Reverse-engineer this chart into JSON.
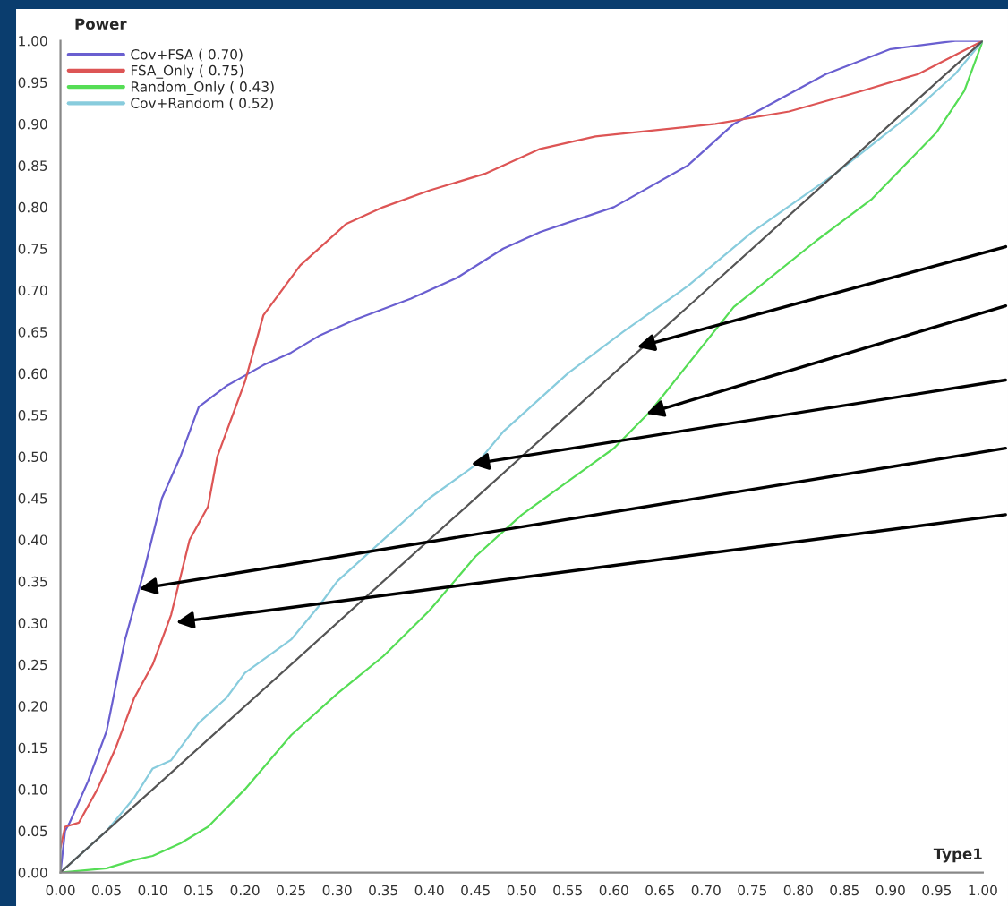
{
  "chart_data": {
    "type": "line",
    "xlabel": "Type1",
    "ylabel": "Power",
    "xlim": [
      0,
      1
    ],
    "ylim": [
      0,
      1
    ],
    "xticks": [
      {
        "value": 0,
        "label": "0.00"
      },
      {
        "value": 0.05,
        "label": "0.05"
      },
      {
        "value": 0.1,
        "label": "0.10"
      },
      {
        "value": 0.15,
        "label": "0.15"
      },
      {
        "value": 0.2,
        "label": "0.20"
      },
      {
        "value": 0.25,
        "label": "0.25"
      },
      {
        "value": 0.3,
        "label": "0.30"
      },
      {
        "value": 0.35,
        "label": "0.35"
      },
      {
        "value": 0.4,
        "label": "0.40"
      },
      {
        "value": 0.45,
        "label": "0.45"
      },
      {
        "value": 0.5,
        "label": "0.50"
      },
      {
        "value": 0.55,
        "label": "0.55"
      },
      {
        "value": 0.6,
        "label": "0.60"
      },
      {
        "value": 0.65,
        "label": "0.65"
      },
      {
        "value": 0.7,
        "label": "0.70"
      },
      {
        "value": 0.75,
        "label": "0.75"
      },
      {
        "value": 0.8,
        "label": "0.80"
      },
      {
        "value": 0.85,
        "label": "0.85"
      },
      {
        "value": 0.9,
        "label": "0.90"
      },
      {
        "value": 0.95,
        "label": "0.95"
      },
      {
        "value": 1,
        "label": "1.00"
      }
    ],
    "yticks": [
      {
        "value": 0,
        "label": "0.00"
      },
      {
        "value": 0.05,
        "label": "0.05"
      },
      {
        "value": 0.1,
        "label": "0.10"
      },
      {
        "value": 0.15,
        "label": "0.15"
      },
      {
        "value": 0.2,
        "label": "0.20"
      },
      {
        "value": 0.25,
        "label": "0.25"
      },
      {
        "value": 0.3,
        "label": "0.30"
      },
      {
        "value": 0.35,
        "label": "0.35"
      },
      {
        "value": 0.4,
        "label": "0.40"
      },
      {
        "value": 0.45,
        "label": "0.45"
      },
      {
        "value": 0.5,
        "label": "0.50"
      },
      {
        "value": 0.55,
        "label": "0.55"
      },
      {
        "value": 0.6,
        "label": "0.60"
      },
      {
        "value": 0.65,
        "label": "0.65"
      },
      {
        "value": 0.7,
        "label": "0.70"
      },
      {
        "value": 0.75,
        "label": "0.75"
      },
      {
        "value": 0.8,
        "label": "0.80"
      },
      {
        "value": 0.85,
        "label": "0.85"
      },
      {
        "value": 0.9,
        "label": "0.90"
      },
      {
        "value": 0.95,
        "label": "0.95"
      },
      {
        "value": 1,
        "label": "1.00"
      }
    ],
    "grid": false,
    "legend": "top left",
    "series": [
      {
        "name": "Cov+FSA ( 0.70)",
        "color": "#6a5fd0",
        "x": [
          0,
          0.005,
          0.01,
          0.03,
          0.05,
          0.07,
          0.09,
          0.11,
          0.13,
          0.15,
          0.18,
          0.22,
          0.25,
          0.28,
          0.32,
          0.38,
          0.43,
          0.48,
          0.52,
          0.6,
          0.68,
          0.73,
          0.83,
          0.9,
          0.97,
          1
        ],
        "values": [
          0,
          0.05,
          0.06,
          0.11,
          0.17,
          0.28,
          0.36,
          0.45,
          0.5,
          0.56,
          0.585,
          0.61,
          0.625,
          0.645,
          0.665,
          0.69,
          0.715,
          0.75,
          0.77,
          0.8,
          0.85,
          0.9,
          0.96,
          0.99,
          1,
          1
        ]
      },
      {
        "name": "FSA_Only ( 0.75)",
        "color": "#dd5555",
        "x": [
          0,
          0.005,
          0.02,
          0.04,
          0.06,
          0.08,
          0.1,
          0.12,
          0.14,
          0.16,
          0.17,
          0.2,
          0.22,
          0.26,
          0.31,
          0.35,
          0.4,
          0.46,
          0.52,
          0.58,
          0.71,
          0.79,
          0.87,
          0.93,
          1
        ],
        "values": [
          0.03,
          0.055,
          0.06,
          0.1,
          0.15,
          0.21,
          0.25,
          0.31,
          0.4,
          0.44,
          0.5,
          0.59,
          0.67,
          0.73,
          0.78,
          0.8,
          0.82,
          0.84,
          0.87,
          0.885,
          0.9,
          0.915,
          0.94,
          0.96,
          1
        ]
      },
      {
        "name": "Random_Only ( 0.43)",
        "color": "#55dd55",
        "x": [
          0,
          0.05,
          0.08,
          0.1,
          0.13,
          0.16,
          0.2,
          0.25,
          0.3,
          0.35,
          0.4,
          0.45,
          0.5,
          0.55,
          0.6,
          0.64,
          0.73,
          0.82,
          0.88,
          0.95,
          0.98,
          1
        ],
        "values": [
          0,
          0.005,
          0.015,
          0.02,
          0.035,
          0.055,
          0.1,
          0.165,
          0.215,
          0.26,
          0.315,
          0.38,
          0.43,
          0.47,
          0.51,
          0.555,
          0.68,
          0.76,
          0.81,
          0.89,
          0.94,
          1
        ]
      },
      {
        "name": "Cov+Random ( 0.52)",
        "color": "#88ccdd",
        "x": [
          0,
          0.05,
          0.08,
          0.1,
          0.12,
          0.15,
          0.18,
          0.2,
          0.25,
          0.28,
          0.3,
          0.35,
          0.4,
          0.45,
          0.48,
          0.55,
          0.61,
          0.68,
          0.75,
          0.84,
          0.92,
          0.97,
          1
        ],
        "values": [
          0,
          0.05,
          0.09,
          0.125,
          0.135,
          0.18,
          0.21,
          0.24,
          0.28,
          0.32,
          0.35,
          0.4,
          0.45,
          0.49,
          0.53,
          0.6,
          0.65,
          0.705,
          0.77,
          0.84,
          0.91,
          0.96,
          1
        ]
      },
      {
        "color": "#555555",
        "x": [
          0,
          1
        ],
        "values": [
          0,
          1
        ]
      }
    ]
  }
}
